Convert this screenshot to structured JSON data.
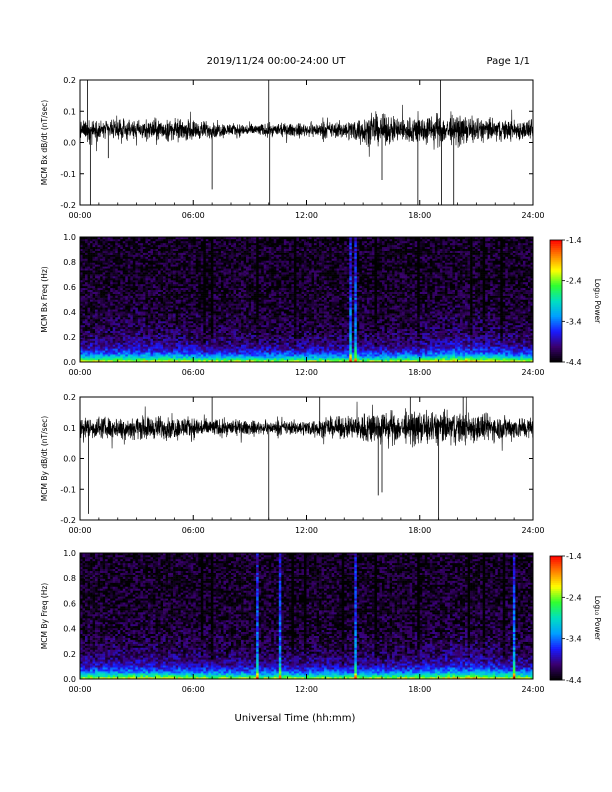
{
  "header": {
    "date_range": "2019/11/24  00:00-24:00 UT",
    "page": "Page 1/1"
  },
  "footer": {
    "xlabel": "Universal Time (hh:mm)"
  },
  "colorbar": {
    "label": "Log₁₀ Power",
    "ticks": [
      "-1.4",
      "-2.4",
      "-3.4",
      "-4.4"
    ],
    "range": [
      -4.4,
      -1.4
    ],
    "colors": [
      "#000000",
      "#3a0070",
      "#1a1aff",
      "#00a0ff",
      "#00e0c0",
      "#30ff30",
      "#ffff00",
      "#ff8000",
      "#ff0000"
    ]
  },
  "chart_data": [
    {
      "type": "line",
      "ylabel": "MCM Bx dB/dt (nT/sec)",
      "ylim": [
        -0.2,
        0.2
      ],
      "yticks": [
        "0.2",
        "0.1",
        "0.0",
        "-0.1",
        "-0.2"
      ],
      "xlim": [
        0,
        24
      ],
      "xticks": [
        "00:00",
        "06:00",
        "12:00",
        "18:00",
        "24:00"
      ],
      "baseline": 0.04,
      "envelope_hours": [
        0,
        2,
        4,
        6,
        8,
        10,
        12,
        14,
        15.5,
        17,
        18,
        19,
        20,
        21,
        22,
        24
      ],
      "envelope_amplitude": [
        0.045,
        0.04,
        0.05,
        0.045,
        0.03,
        0.028,
        0.03,
        0.04,
        0.07,
        0.06,
        0.065,
        0.07,
        0.065,
        0.06,
        0.05,
        0.045
      ],
      "spikes": [
        [
          0.4,
          0.2
        ],
        [
          0.55,
          -0.2
        ],
        [
          10.0,
          0.2
        ],
        [
          10.05,
          -0.2
        ],
        [
          16.0,
          -0.12
        ],
        [
          17.9,
          -0.2
        ],
        [
          19.1,
          0.2
        ],
        [
          19.15,
          -0.2
        ],
        [
          19.8,
          -0.2
        ],
        [
          1.5,
          -0.05
        ],
        [
          7.0,
          -0.15
        ]
      ]
    },
    {
      "type": "heatmap",
      "ylabel": "MCM Bx Freq (Hz)",
      "ylim": [
        0,
        1.0
      ],
      "yticks": [
        "1.0",
        "0.8",
        "0.6",
        "0.4",
        "0.2",
        "0.0"
      ],
      "xlim": [
        0,
        24
      ],
      "xticks": [
        "00:00",
        "06:00",
        "12:00",
        "18:00",
        "24:00"
      ],
      "zlim": [
        -4.4,
        -1.4
      ],
      "bright_columns_hours": [
        14.2,
        14.5
      ],
      "dark_columns_hours": [
        6.5,
        6.9,
        9.3,
        11.3,
        15.6,
        17.9,
        20.6,
        21.3,
        22.3
      ]
    },
    {
      "type": "line",
      "ylabel": "MCM By dB/dt (nT/sec)",
      "ylim": [
        -0.2,
        0.2
      ],
      "yticks": [
        "0.2",
        "0.1",
        "0.0",
        "-0.1",
        "-0.2"
      ],
      "xlim": [
        0,
        24
      ],
      "xticks": [
        "00:00",
        "06:00",
        "12:00",
        "18:00",
        "24:00"
      ],
      "baseline": 0.1,
      "envelope_hours": [
        0,
        2,
        4,
        6,
        8,
        10,
        12,
        14,
        15.5,
        17,
        18,
        19,
        20,
        21,
        22,
        24
      ],
      "envelope_amplitude": [
        0.05,
        0.05,
        0.055,
        0.05,
        0.035,
        0.03,
        0.035,
        0.05,
        0.08,
        0.07,
        0.075,
        0.08,
        0.075,
        0.07,
        0.06,
        0.05
      ],
      "spikes": [
        [
          0.45,
          -0.18
        ],
        [
          10.0,
          -0.2
        ],
        [
          15.8,
          -0.12
        ],
        [
          16.0,
          -0.11
        ],
        [
          19.0,
          -0.2
        ],
        [
          7.0,
          0.2
        ],
        [
          12.7,
          0.2
        ],
        [
          17.5,
          0.2
        ],
        [
          20.3,
          0.2
        ]
      ]
    },
    {
      "type": "heatmap",
      "ylabel": "MCM By Freq (Hz)",
      "ylim": [
        0,
        1.0
      ],
      "yticks": [
        "1.0",
        "0.8",
        "0.6",
        "0.4",
        "0.2",
        "0.0"
      ],
      "xlim": [
        0,
        24
      ],
      "xticks": [
        "00:00",
        "06:00",
        "12:00",
        "18:00",
        "24:00"
      ],
      "zlim": [
        -4.4,
        -1.4
      ],
      "bright_columns_hours": [
        9.3,
        10.5,
        14.5,
        22.9
      ],
      "dark_columns_hours": [
        6.4,
        6.9,
        11.2,
        11.8,
        13.9,
        15.6,
        17.8,
        20.5,
        21.3,
        22.4
      ]
    }
  ]
}
